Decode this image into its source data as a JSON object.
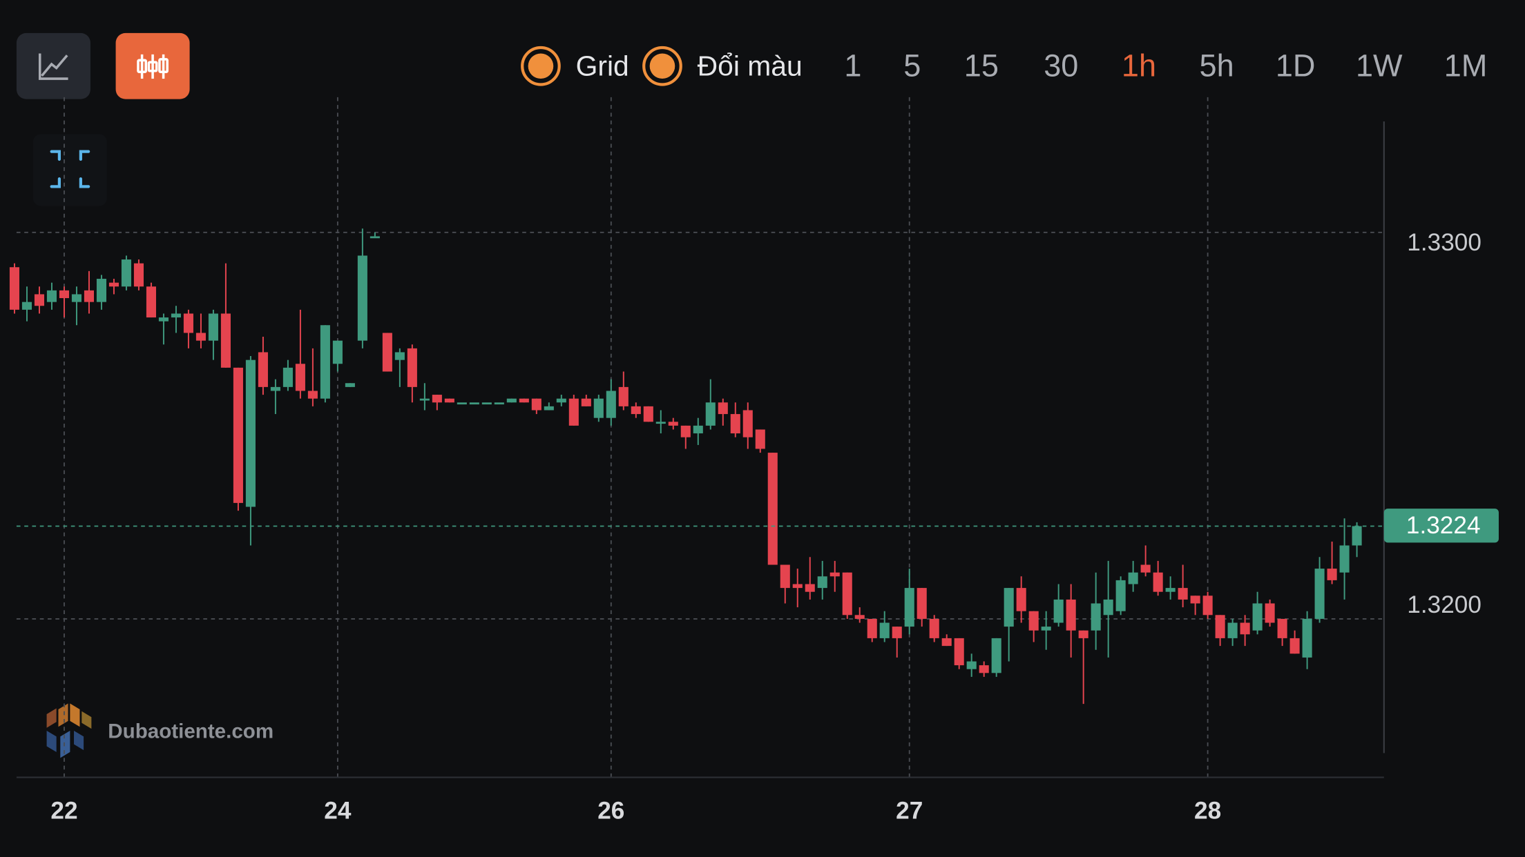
{
  "toolbar": {
    "toggles": [
      "Grid",
      "Đổi màu"
    ],
    "intervals": [
      "1",
      "5",
      "15",
      "30",
      "1h",
      "5h",
      "1D",
      "1W",
      "1M"
    ],
    "active": "1h"
  },
  "watermark": "Dubaotiente.com",
  "chart_data": {
    "type": "candlestick",
    "categories": [
      null,
      null,
      null,
      null,
      "22",
      null,
      null,
      null,
      null,
      null,
      null,
      null,
      null,
      null,
      null,
      null,
      null,
      null,
      null,
      null,
      null,
      null,
      null,
      null,
      null,
      null,
      "24",
      null,
      null,
      null,
      null,
      null,
      null,
      null,
      null,
      null,
      null,
      null,
      null,
      null,
      null,
      null,
      null,
      null,
      null,
      null,
      null,
      null,
      "26",
      null,
      null,
      null,
      null,
      null,
      null,
      null,
      null,
      null,
      null,
      null,
      null,
      null,
      null,
      null,
      null,
      null,
      null,
      null,
      null,
      null,
      null,
      null,
      "27",
      null,
      null,
      null,
      null,
      null,
      null,
      null,
      null,
      null,
      null,
      null,
      null,
      null,
      null,
      null,
      null,
      null,
      null,
      null,
      null,
      null,
      null,
      null,
      "28",
      null,
      null,
      null,
      null,
      null,
      null,
      null,
      null,
      null,
      null,
      null,
      null
    ],
    "open": [
      1.3291,
      1.328,
      1.3284,
      1.3282,
      1.3285,
      1.3282,
      1.3285,
      1.3282,
      1.3287,
      1.3286,
      1.3292,
      1.3286,
      1.3277,
      1.3278,
      1.3279,
      1.3274,
      1.3272,
      1.3279,
      1.3265,
      1.3229,
      1.3269,
      1.3259,
      1.326,
      1.3266,
      1.3259,
      1.3257,
      1.3266,
      1.326,
      1.3272,
      1.3299,
      1.3274,
      1.3267,
      1.327,
      1.3257,
      1.3258,
      1.3257,
      1.3256,
      1.3256,
      1.3256,
      1.3256,
      1.3256,
      1.3257,
      1.3257,
      1.3254,
      1.3256,
      1.3257,
      1.3257,
      1.3252,
      1.3252,
      1.326,
      1.3255,
      1.3255,
      1.3251,
      1.3251,
      1.325,
      1.3248,
      1.325,
      1.3256,
      1.3253,
      1.3254,
      1.3249,
      1.3243,
      1.3214,
      1.3209,
      1.3209,
      1.3208,
      1.3212,
      1.3212,
      1.3201,
      1.32,
      1.3195,
      1.3198,
      1.3198,
      1.3208,
      1.32,
      1.3195,
      1.3195,
      1.3187,
      1.3188,
      1.3186,
      1.3198,
      1.3208,
      1.3202,
      1.3197,
      1.3199,
      1.3205,
      1.3197,
      1.3197,
      1.3201,
      1.3202,
      1.3209,
      1.3214,
      1.3212,
      1.3207,
      1.3208,
      1.3206,
      1.3206,
      1.3201,
      1.3195,
      1.3199,
      1.3197,
      1.3204,
      1.32,
      1.3195,
      1.319,
      1.32,
      1.3213,
      1.3212,
      1.3219
    ],
    "high": [
      1.3292,
      1.3286,
      1.3286,
      1.3287,
      1.3286,
      1.3286,
      1.329,
      1.3289,
      1.3288,
      1.3294,
      1.3293,
      1.3287,
      1.3279,
      1.3281,
      1.328,
      1.3279,
      1.328,
      1.3292,
      1.3265,
      1.3268,
      1.3273,
      1.3262,
      1.3267,
      1.328,
      1.327,
      1.3276,
      1.3272,
      1.3261,
      1.3301,
      1.33,
      1.3274,
      1.327,
      1.3271,
      1.3261,
      1.3258,
      1.3257,
      1.3256,
      1.3256,
      1.3256,
      1.3256,
      1.3257,
      1.3257,
      1.3257,
      1.3256,
      1.3258,
      1.3258,
      1.3258,
      1.3258,
      1.3262,
      1.3264,
      1.3256,
      1.3255,
      1.3254,
      1.3252,
      1.325,
      1.3252,
      1.3262,
      1.3257,
      1.3256,
      1.3256,
      1.3249,
      1.3243,
      1.3214,
      1.3213,
      1.3216,
      1.3215,
      1.3215,
      1.3212,
      1.3203,
      1.32,
      1.3202,
      1.3198,
      1.3213,
      1.3208,
      1.3201,
      1.3196,
      1.3195,
      1.3191,
      1.3189,
      1.3195,
      1.3208,
      1.3211,
      1.3202,
      1.3202,
      1.3209,
      1.3209,
      1.3197,
      1.3212,
      1.3215,
      1.3211,
      1.3215,
      1.3219,
      1.3215,
      1.3211,
      1.3214,
      1.3206,
      1.3207,
      1.3201,
      1.32,
      1.3201,
      1.3207,
      1.3205,
      1.32,
      1.3197,
      1.3202,
      1.3216,
      1.322,
      1.3226,
      1.3225
    ],
    "low": [
      1.3279,
      1.3277,
      1.3279,
      1.328,
      1.3278,
      1.3276,
      1.3279,
      1.328,
      1.3284,
      1.3285,
      1.3285,
      1.3278,
      1.3271,
      1.3274,
      1.327,
      1.327,
      1.3267,
      1.3265,
      1.3228,
      1.3219,
      1.3258,
      1.3253,
      1.3259,
      1.3257,
      1.3255,
      1.3256,
      1.3264,
      1.326,
      1.327,
      1.3299,
      1.3264,
      1.326,
      1.3256,
      1.3254,
      1.3254,
      1.3256,
      1.3256,
      1.3256,
      1.3256,
      1.3256,
      1.3256,
      1.3256,
      1.3253,
      1.3254,
      1.3255,
      1.325,
      1.3255,
      1.3251,
      1.325,
      1.3254,
      1.3252,
      1.3251,
      1.3248,
      1.3249,
      1.3244,
      1.3245,
      1.3249,
      1.325,
      1.3247,
      1.3244,
      1.3243,
      1.3214,
      1.3204,
      1.3203,
      1.3205,
      1.3205,
      1.3207,
      1.32,
      1.3199,
      1.3194,
      1.3194,
      1.319,
      1.3196,
      1.3198,
      1.3194,
      1.3193,
      1.3187,
      1.3185,
      1.3185,
      1.3185,
      1.3189,
      1.3199,
      1.3194,
      1.3192,
      1.3198,
      1.319,
      1.3178,
      1.3192,
      1.319,
      1.3201,
      1.3207,
      1.3211,
      1.3206,
      1.3205,
      1.3203,
      1.3201,
      1.32,
      1.3193,
      1.3193,
      1.3193,
      1.3196,
      1.3198,
      1.3193,
      1.3191,
      1.3187,
      1.3199,
      1.3209,
      1.3205,
      1.3216
    ],
    "close": [
      1.328,
      1.3282,
      1.3281,
      1.3285,
      1.3283,
      1.3284,
      1.3282,
      1.3288,
      1.3286,
      1.3293,
      1.3286,
      1.3278,
      1.3278,
      1.3279,
      1.3274,
      1.3272,
      1.3279,
      1.3265,
      1.323,
      1.3267,
      1.326,
      1.326,
      1.3265,
      1.3259,
      1.3257,
      1.3276,
      1.3272,
      1.3261,
      1.3294,
      1.3299,
      1.3264,
      1.3269,
      1.326,
      1.3257,
      1.3256,
      1.3256,
      1.3256,
      1.3256,
      1.3256,
      1.3256,
      1.3257,
      1.3256,
      1.3254,
      1.3255,
      1.3257,
      1.325,
      1.3255,
      1.3257,
      1.3259,
      1.3255,
      1.3253,
      1.3251,
      1.3251,
      1.325,
      1.3247,
      1.325,
      1.3256,
      1.3253,
      1.3248,
      1.3247,
      1.3244,
      1.3214,
      1.3208,
      1.3208,
      1.3207,
      1.3211,
      1.3211,
      1.3201,
      1.32,
      1.3195,
      1.3199,
      1.3195,
      1.3208,
      1.32,
      1.3195,
      1.3193,
      1.3188,
      1.3189,
      1.3186,
      1.3195,
      1.3208,
      1.3202,
      1.3197,
      1.3198,
      1.3205,
      1.3197,
      1.3195,
      1.3204,
      1.3205,
      1.321,
      1.3212,
      1.3212,
      1.3207,
      1.3208,
      1.3205,
      1.3204,
      1.3201,
      1.3195,
      1.3199,
      1.3196,
      1.3204,
      1.3199,
      1.3195,
      1.3191,
      1.32,
      1.3213,
      1.321,
      1.3219,
      1.3224
    ],
    "up_color": "#3f9a7f",
    "down_color": "#e5444f",
    "ylim": [
      1.3159,
      1.3335
    ],
    "yticks": [
      {
        "value": 1.33,
        "label": "1.3300"
      },
      {
        "value": 1.32,
        "label": "1.3200"
      }
    ],
    "last_price": {
      "value": 1.3224,
      "label": "1.3224"
    },
    "grid": true
  }
}
